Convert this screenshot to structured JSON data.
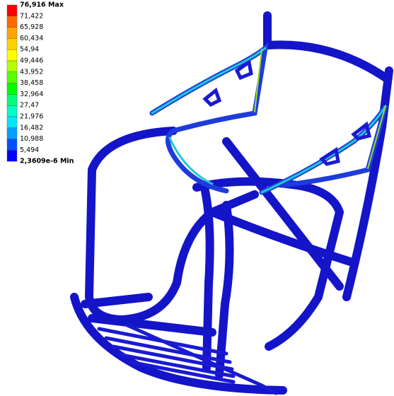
{
  "legend": {
    "labels": [
      "76,916 Max",
      "71,422",
      "65,928",
      "60,434",
      "54,94",
      "49,446",
      "43,952",
      "38,458",
      "32,964",
      "27,47",
      "21,976",
      "16,482",
      "10,988",
      "5,494",
      "2,3609e-6 Min"
    ],
    "colors": [
      "#ff0000",
      "#ff6a00",
      "#ffa500",
      "#ffd200",
      "#ffff00",
      "#b4ff00",
      "#5aff00",
      "#00ff00",
      "#00ff78",
      "#00ffc8",
      "#00e6ff",
      "#00a0ff",
      "#0050ff",
      "#0000ff"
    ]
  }
}
